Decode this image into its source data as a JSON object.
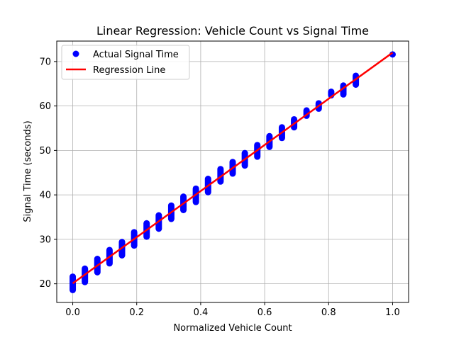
{
  "chart_data": {
    "type": "scatter",
    "title": "Linear Regression: Vehicle Count vs Signal Time",
    "xlabel": "Normalized Vehicle Count",
    "ylabel": "Signal Time (seconds)",
    "xlim": [
      -0.05,
      1.05
    ],
    "ylim": [
      15.8,
      74.6
    ],
    "xticks": [
      0.0,
      0.2,
      0.4,
      0.6,
      0.8,
      1.0
    ],
    "xtick_labels": [
      "0.0",
      "0.2",
      "0.4",
      "0.6",
      "0.8",
      "1.0"
    ],
    "yticks": [
      20,
      30,
      40,
      50,
      60,
      70
    ],
    "ytick_labels": [
      "20",
      "30",
      "40",
      "50",
      "60",
      "70"
    ],
    "grid": true,
    "legend": {
      "placement": "top-left",
      "entries": [
        "Actual Signal Time",
        "Regression Line"
      ]
    },
    "series": [
      {
        "name": "Actual Signal Time",
        "kind": "scatter",
        "color": "#0000ff",
        "points": [
          {
            "x": 0.0,
            "y_min": 18.6,
            "y_max": 21.6
          },
          {
            "x": 0.038,
            "y_min": 20.4,
            "y_max": 23.4
          },
          {
            "x": 0.077,
            "y_min": 22.6,
            "y_max": 25.6
          },
          {
            "x": 0.115,
            "y_min": 24.6,
            "y_max": 27.6
          },
          {
            "x": 0.154,
            "y_min": 26.4,
            "y_max": 29.4
          },
          {
            "x": 0.192,
            "y_min": 28.6,
            "y_max": 31.6
          },
          {
            "x": 0.231,
            "y_min": 30.6,
            "y_max": 33.6
          },
          {
            "x": 0.269,
            "y_min": 32.4,
            "y_max": 35.4
          },
          {
            "x": 0.308,
            "y_min": 34.6,
            "y_max": 37.6
          },
          {
            "x": 0.346,
            "y_min": 36.6,
            "y_max": 39.6
          },
          {
            "x": 0.385,
            "y_min": 38.4,
            "y_max": 41.4
          },
          {
            "x": 0.423,
            "y_min": 40.6,
            "y_max": 43.6
          },
          {
            "x": 0.462,
            "y_min": 43.0,
            "y_max": 45.8
          },
          {
            "x": 0.5,
            "y_min": 44.8,
            "y_max": 47.4
          },
          {
            "x": 0.538,
            "y_min": 46.6,
            "y_max": 49.4
          },
          {
            "x": 0.577,
            "y_min": 48.6,
            "y_max": 51.2
          },
          {
            "x": 0.615,
            "y_min": 50.8,
            "y_max": 53.2
          },
          {
            "x": 0.654,
            "y_min": 52.8,
            "y_max": 55.2
          },
          {
            "x": 0.692,
            "y_min": 55.2,
            "y_max": 57.0
          },
          {
            "x": 0.731,
            "y_min": 57.8,
            "y_max": 59.0
          },
          {
            "x": 0.769,
            "y_min": 59.4,
            "y_max": 60.6
          },
          {
            "x": 0.808,
            "y_min": 62.4,
            "y_max": 63.2
          },
          {
            "x": 0.846,
            "y_min": 62.6,
            "y_max": 64.6
          },
          {
            "x": 0.885,
            "y_min": 64.8,
            "y_max": 66.8
          },
          {
            "x": 1.0,
            "y_min": 71.6,
            "y_max": 71.6
          }
        ]
      },
      {
        "name": "Regression Line",
        "kind": "line",
        "color": "#ff0000",
        "x": [
          0.0,
          1.0
        ],
        "y": [
          20.1,
          72.0
        ]
      }
    ]
  }
}
